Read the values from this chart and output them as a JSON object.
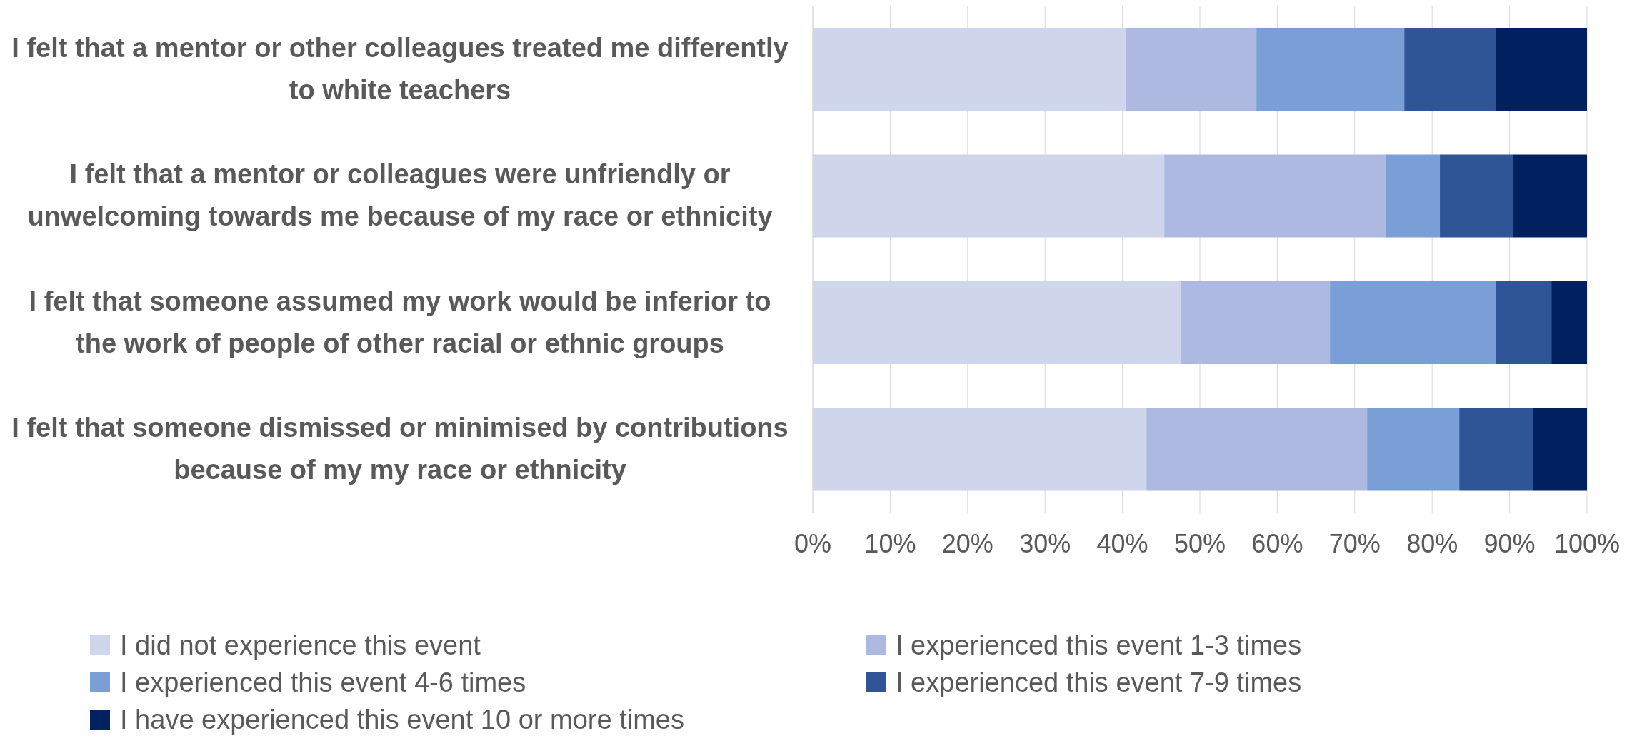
{
  "chart_data": {
    "type": "bar",
    "orientation": "horizontal",
    "stacked": true,
    "categories": [
      "I felt that a mentor or other colleagues treated me differently to white teachers",
      "I felt that a mentor or colleagues were unfriendly or unwelcoming towards me because of my race or ethnicity",
      "I felt that someone assumed my work would be inferior to the work of people of other racial or ethnic groups",
      "I felt that someone dismissed or minimised by contributions because of my my race or ethnicity"
    ],
    "series": [
      {
        "name": "I did not experience this event",
        "color": "#cfd5ea",
        "values": [
          40.5,
          45.4,
          47.6,
          43.1
        ]
      },
      {
        "name": "I experienced this event 1-3 times",
        "color": "#adb9e0",
        "values": [
          16.8,
          28.6,
          19.2,
          28.5
        ]
      },
      {
        "name": "I experienced this event 4-6 times",
        "color": "#7a9fd6",
        "values": [
          19.1,
          7.0,
          21.4,
          11.9
        ]
      },
      {
        "name": "I experienced this event 7-9 times",
        "color": "#2f5597",
        "values": [
          11.8,
          9.5,
          7.2,
          9.5
        ]
      },
      {
        "name": "I have experienced this event 10 or more times",
        "color": "#002060",
        "values": [
          11.8,
          9.5,
          4.6,
          7.0
        ]
      }
    ],
    "xlim": [
      0,
      100
    ],
    "xticks": [
      {
        "value": 0,
        "label": "0%"
      },
      {
        "value": 10,
        "label": "10%"
      },
      {
        "value": 20,
        "label": "20%"
      },
      {
        "value": 30,
        "label": "30%"
      },
      {
        "value": 40,
        "label": "40%"
      },
      {
        "value": 50,
        "label": "50%"
      },
      {
        "value": 60,
        "label": "60%"
      },
      {
        "value": 70,
        "label": "70%"
      },
      {
        "value": 80,
        "label": "80%"
      },
      {
        "value": 90,
        "label": "90%"
      },
      {
        "value": 100,
        "label": "100%"
      }
    ],
    "grid": "x",
    "legend": "bottom"
  }
}
